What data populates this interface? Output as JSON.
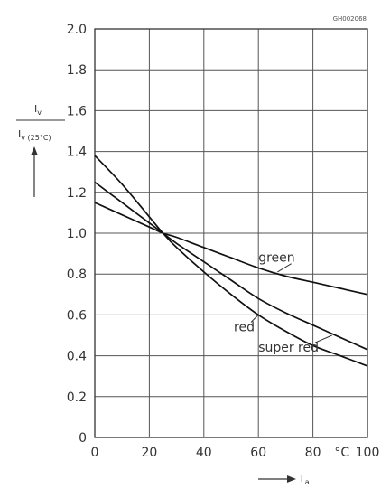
{
  "chart_data": {
    "type": "line",
    "figure_code": "GH002068",
    "xlim": [
      0,
      100
    ],
    "ylim": [
      0,
      2.0
    ],
    "x_ticks": [
      "0",
      "20",
      "40",
      "60",
      "80",
      "100"
    ],
    "x_unit": "°C",
    "y_ticks": [
      "0",
      "0.2",
      "0.4",
      "0.6",
      "0.8",
      "1.0",
      "1.2",
      "1.4",
      "1.6",
      "1.8",
      "2.0"
    ],
    "xlabel": "T",
    "xlabel_sub": "a",
    "ylabel_num": "I",
    "ylabel_num_sub": "v",
    "ylabel_den": "I",
    "ylabel_den_sub": "v (25°C)",
    "grid": true,
    "series": [
      {
        "name": "green",
        "x": [
          0,
          10,
          20,
          25,
          30,
          40,
          50,
          60,
          70,
          80,
          90,
          100
        ],
        "y": [
          1.15,
          1.09,
          1.03,
          1.0,
          0.98,
          0.93,
          0.88,
          0.83,
          0.79,
          0.76,
          0.73,
          0.7
        ]
      },
      {
        "name": "red",
        "x": [
          0,
          10,
          20,
          25,
          30,
          40,
          50,
          60,
          70,
          80,
          90,
          100
        ],
        "y": [
          1.25,
          1.15,
          1.05,
          1.0,
          0.95,
          0.86,
          0.77,
          0.68,
          0.61,
          0.55,
          0.49,
          0.43
        ]
      },
      {
        "name": "super red",
        "x": [
          0,
          10,
          20,
          25,
          30,
          40,
          50,
          60,
          70,
          80,
          90,
          100
        ],
        "y": [
          1.38,
          1.24,
          1.08,
          1.0,
          0.93,
          0.81,
          0.7,
          0.6,
          0.52,
          0.45,
          0.4,
          0.35
        ]
      }
    ],
    "labels": [
      {
        "text": "green",
        "x": 60,
        "y": 0.86,
        "leader_to": [
          67,
          0.81
        ]
      },
      {
        "text": "red",
        "x": 51,
        "y": 0.52,
        "leader_to": [
          60,
          0.6
        ]
      },
      {
        "text": "super red",
        "x": 60,
        "y": 0.42,
        "leader_to": [
          87,
          0.5
        ]
      }
    ]
  }
}
